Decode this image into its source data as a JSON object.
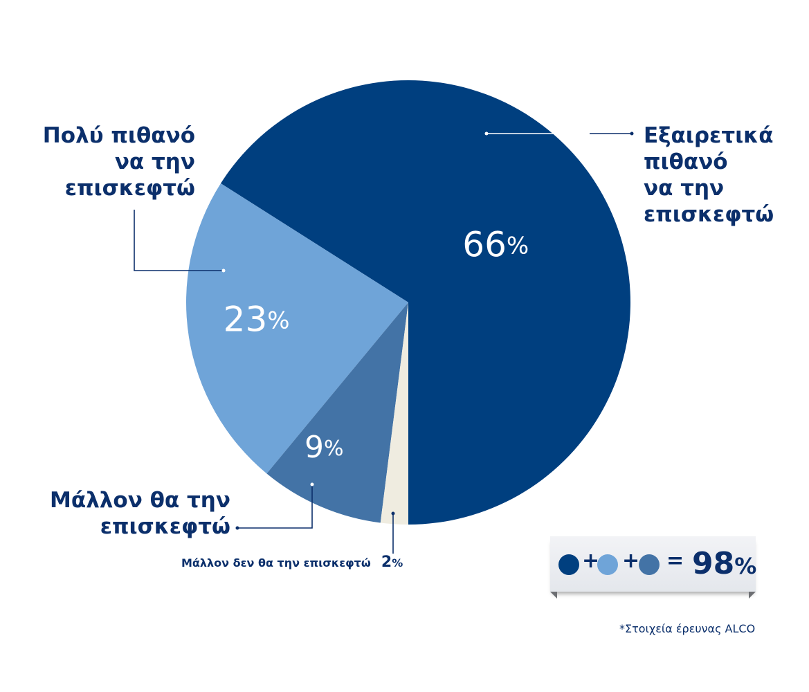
{
  "chart_data": {
    "type": "pie",
    "categories": [
      "Εξαιρετικά\nπιθανό\nνα την\nεπισκεφτώ",
      "Πολύ πιθανό\nνα την\nεπισκεφτώ",
      "Μάλλον θα την\nεπισκεφτώ",
      "Μάλλον δεν θα την επισκεφτώ"
    ],
    "values": [
      66,
      23,
      9,
      2
    ],
    "value_labels": [
      "66",
      "23",
      "9",
      "2"
    ],
    "unit": "%",
    "colors": [
      "#003f7f",
      "#6fa4d8",
      "#4373a6",
      "#efece0"
    ],
    "title": "",
    "legend": "none"
  },
  "total": {
    "plus": "+",
    "equals": "=",
    "value": "98",
    "unit": "%",
    "dot_colors": [
      "#003f7f",
      "#6fa4d8",
      "#4373a6"
    ]
  },
  "source_note": "*Στοιχεία έρευνας ALCO"
}
